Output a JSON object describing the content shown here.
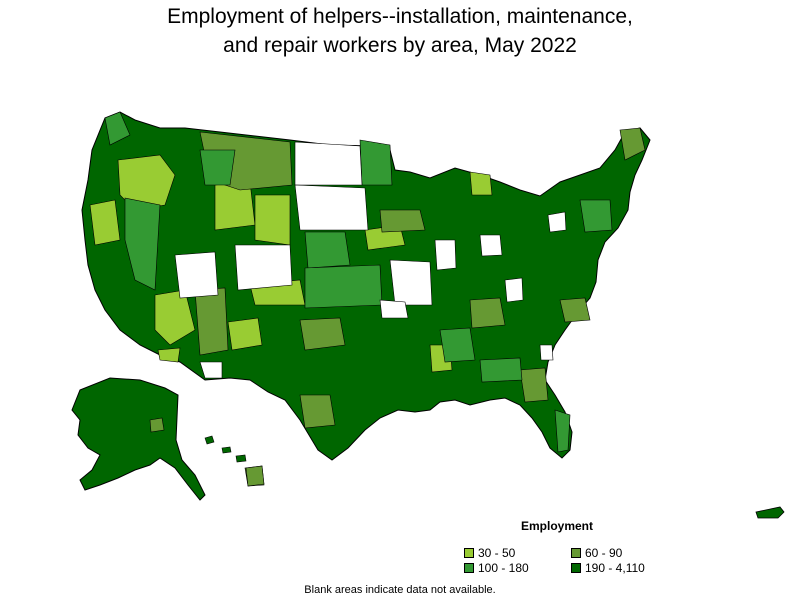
{
  "title": {
    "line1": "Employment of helpers--installation, maintenance,",
    "line2": "and repair workers by area, May 2022"
  },
  "legend": {
    "title": "Employment",
    "items": [
      {
        "label": "30 - 50",
        "color": "#99cc33"
      },
      {
        "label": "60 - 90",
        "color": "#669933"
      },
      {
        "label": "100 - 180",
        "color": "#339933"
      },
      {
        "label": "190 - 4,110",
        "color": "#006600"
      }
    ]
  },
  "note": "Blank areas indicate data not available.",
  "colors": {
    "no_data": "#ffffff",
    "border": "#000000"
  }
}
